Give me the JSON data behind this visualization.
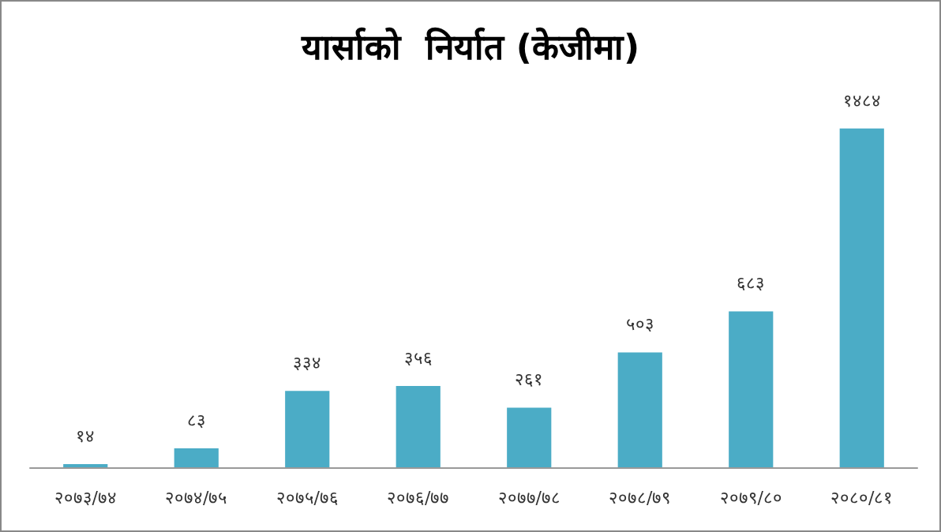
{
  "chart_data": {
    "type": "bar",
    "title": "यार्साको  निर्यात (केजीमा)",
    "categories": [
      "२०७३/७४",
      "२०७४/७५",
      "२०७५/७६",
      "२०७६/७७",
      "२०७७/७८",
      "२०७८/७९",
      "२०७९/८०",
      "२०८०/८१"
    ],
    "values": [
      14,
      83,
      334,
      356,
      261,
      503,
      683,
      1484
    ],
    "value_labels": [
      "१४",
      "८३",
      "३३४",
      "३५६",
      "२६१",
      "५०३",
      "६८३",
      "१४८४"
    ],
    "color": "#4bacc6"
  }
}
